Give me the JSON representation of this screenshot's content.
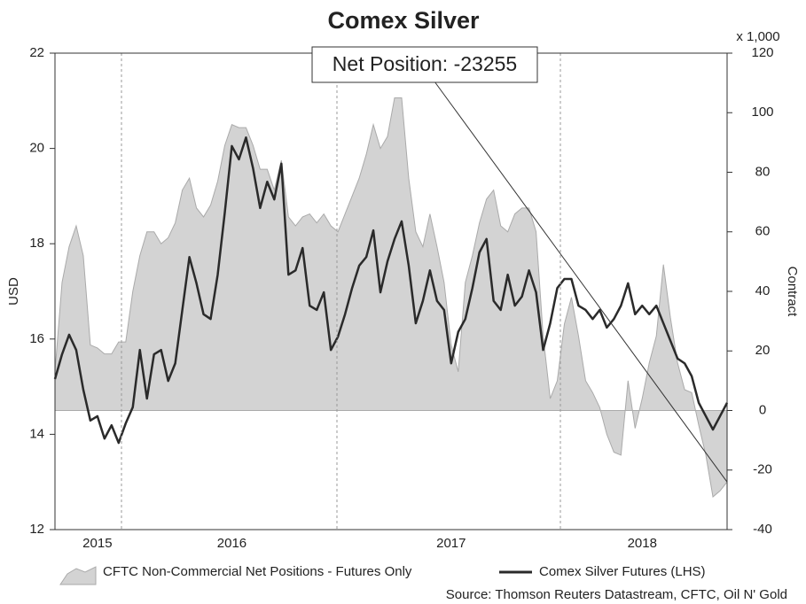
{
  "chart_data": {
    "type": "line",
    "title": "Comex Silver",
    "ylabel": "USD",
    "y2label": "Contract",
    "y2unit": "x 1,000",
    "annotation": "Net Position: -23255",
    "source": "Source: Thomson Reuters Datastream, CFTC, Oil N' Gold",
    "categories": [
      null,
      null,
      null,
      null,
      null,
      null,
      "2015",
      null,
      null,
      null,
      null,
      null,
      null,
      null,
      null,
      null,
      null,
      null,
      null,
      null,
      null,
      null,
      null,
      null,
      null,
      "2016",
      null,
      null,
      null,
      null,
      null,
      null,
      null,
      null,
      null,
      null,
      null,
      null,
      null,
      null,
      null,
      null,
      null,
      null,
      null,
      null,
      null,
      null,
      null,
      null,
      null,
      null,
      null,
      null,
      null,
      null,
      "2017",
      null,
      null,
      null,
      null,
      null,
      null,
      null,
      null,
      null,
      null,
      null,
      null,
      null,
      null,
      null,
      null,
      null,
      null,
      null,
      null,
      null,
      null,
      null,
      null,
      null,
      null,
      "2018",
      null,
      null,
      null,
      null,
      null,
      null,
      null,
      null,
      null,
      null,
      null,
      null
    ],
    "ylim": [
      12,
      22
    ],
    "yticks": [
      12,
      14,
      16,
      18,
      20,
      22
    ],
    "y2lim": [
      -40,
      120
    ],
    "y2ticks": [
      -40,
      -20,
      0,
      20,
      40,
      60,
      80,
      100,
      120
    ],
    "series": [
      {
        "name": "CFTC Non-Commercial Net Positions - Futures Only",
        "kind": "area",
        "axis": "y2",
        "color": "#d3d3d3",
        "values": [
          13,
          43,
          55,
          62,
          52,
          22,
          21,
          19,
          19,
          23,
          23,
          40,
          52,
          60,
          60,
          56,
          58,
          63,
          74,
          78,
          68,
          65,
          69,
          77,
          89,
          96,
          95,
          95,
          89,
          81,
          81,
          74,
          84,
          65,
          62,
          65,
          66,
          63,
          66,
          62,
          60,
          66,
          72,
          78,
          86,
          96,
          88,
          92,
          105,
          105,
          78,
          60,
          55,
          66,
          55,
          43,
          22,
          13,
          43,
          52,
          63,
          71,
          74,
          62,
          60,
          66,
          68,
          68,
          60,
          25,
          4,
          10,
          29,
          38,
          25,
          10,
          6,
          1,
          -8,
          -14,
          -15,
          10,
          -6,
          4,
          16,
          25,
          49,
          31,
          16,
          7,
          6,
          -5,
          -15,
          -29,
          -27,
          -24
        ]
      },
      {
        "name": "Comex Silver Futures (LHS)",
        "kind": "line",
        "axis": "y",
        "color": "#2a2a2a",
        "values": [
          15.16,
          15.68,
          16.09,
          15.77,
          14.94,
          14.29,
          14.38,
          13.91,
          14.19,
          13.82,
          14.23,
          14.57,
          15.77,
          14.75,
          15.68,
          15.77,
          15.12,
          15.49,
          16.61,
          17.72,
          17.17,
          16.52,
          16.42,
          17.35,
          18.65,
          20.05,
          19.77,
          20.23,
          19.58,
          18.75,
          19.3,
          18.93,
          19.68,
          17.35,
          17.44,
          17.91,
          16.7,
          16.61,
          16.98,
          15.77,
          16.05,
          16.52,
          17.07,
          17.54,
          17.72,
          18.28,
          16.98,
          17.63,
          18.1,
          18.47,
          17.54,
          16.33,
          16.8,
          17.44,
          16.8,
          16.61,
          15.49,
          16.15,
          16.42,
          17.07,
          17.82,
          18.1,
          16.8,
          16.61,
          17.35,
          16.7,
          16.89,
          17.44,
          16.98,
          15.77,
          16.33,
          17.07,
          17.26,
          17.26,
          16.7,
          16.61,
          16.42,
          16.61,
          16.24,
          16.42,
          16.7,
          17.17,
          16.52,
          16.7,
          16.52,
          16.7,
          16.33,
          15.96,
          15.59,
          15.49,
          15.22,
          14.66,
          14.38,
          14.1,
          14.38,
          14.66
        ]
      }
    ]
  }
}
